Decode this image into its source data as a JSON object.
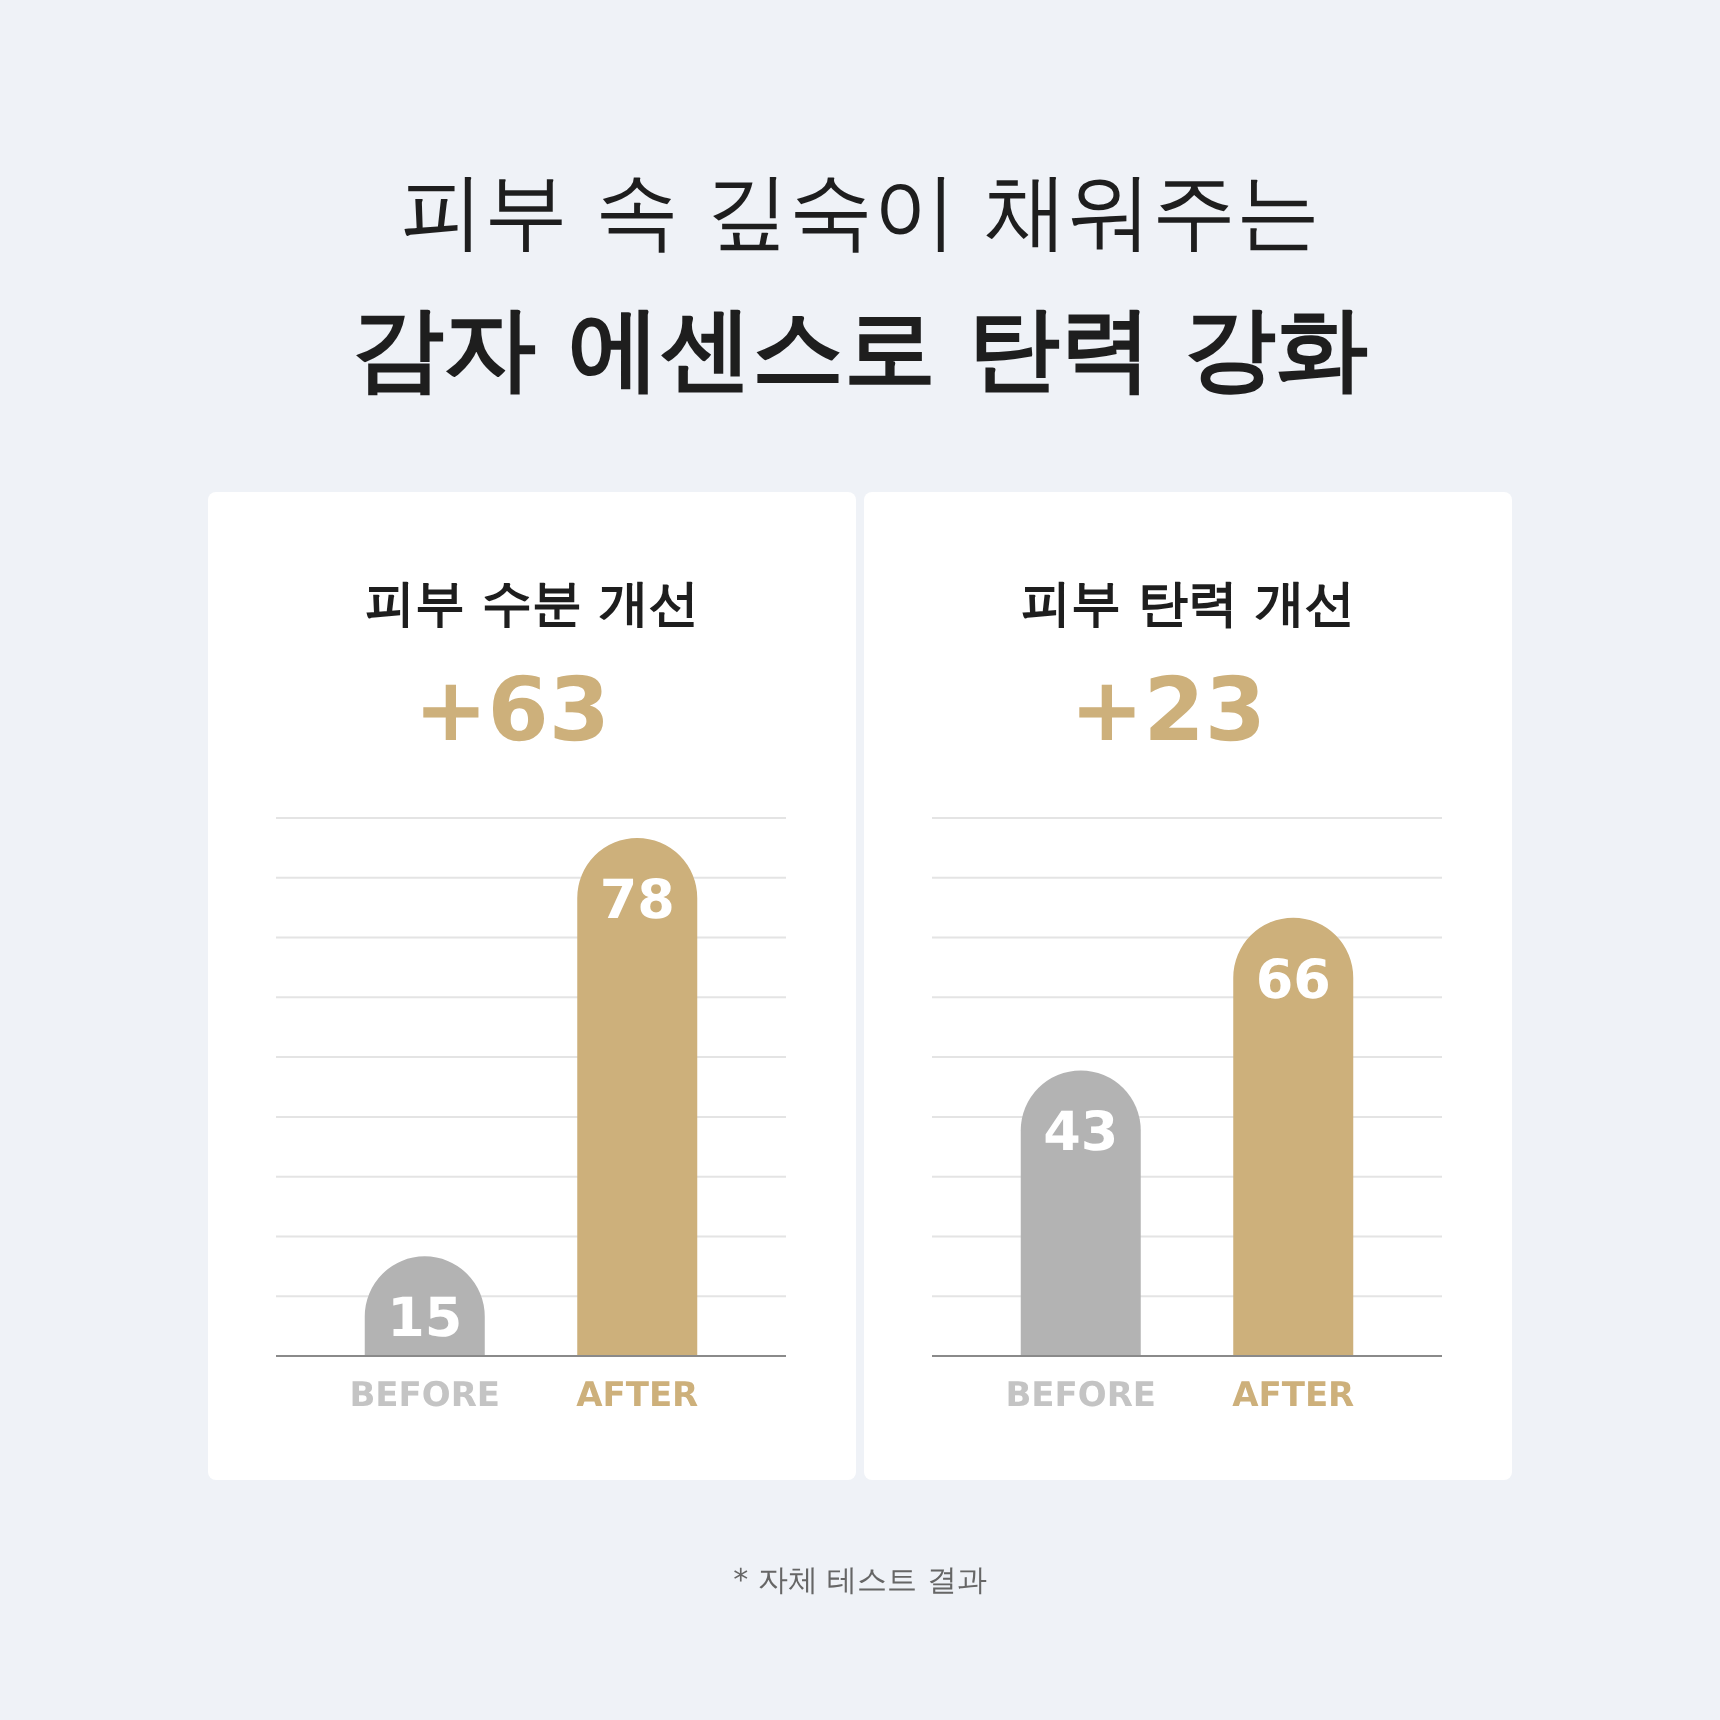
{
  "chart_data": [
    {
      "type": "other",
      "annotations": [
        "피부 속 깊숙이 채워주는",
        "감자 에센스로 탄력 강화"
      ]
    },
    {
      "type": "bar",
      "title": "피부 수분 개선",
      "subtitle": "+63",
      "categories": [
        "BEFORE",
        "AFTER"
      ],
      "values": [
        15,
        78
      ],
      "colors": [
        "#b3b3b3",
        "#cdb07b"
      ],
      "ylim": [
        0,
        81
      ],
      "yticks": [
        {
          "value": 9,
          "label": null
        },
        {
          "value": 18,
          "label": null
        },
        {
          "value": 27,
          "label": null
        },
        {
          "value": 36,
          "label": null
        },
        {
          "value": 45,
          "label": null
        },
        {
          "value": 54,
          "label": null
        },
        {
          "value": 63,
          "label": null
        },
        {
          "value": 72,
          "label": null
        },
        {
          "value": 81,
          "label": null
        }
      ],
      "grid": "y",
      "data_labels": true
    },
    {
      "type": "bar",
      "title": "피부 탄력 개선",
      "subtitle": "+23",
      "categories": [
        "BEFORE",
        "AFTER"
      ],
      "values": [
        43,
        66
      ],
      "colors": [
        "#b3b3b3",
        "#cdb07b"
      ],
      "ylim": [
        0,
        81
      ],
      "yticks": [
        {
          "value": 9,
          "label": null
        },
        {
          "value": 18,
          "label": null
        },
        {
          "value": 27,
          "label": null
        },
        {
          "value": 36,
          "label": null
        },
        {
          "value": 45,
          "label": null
        },
        {
          "value": 54,
          "label": null
        },
        {
          "value": 63,
          "label": null
        },
        {
          "value": 72,
          "label": null
        },
        {
          "value": 81,
          "label": null
        }
      ],
      "grid": "y",
      "data_labels": true
    },
    {
      "type": "other",
      "annotations": [
        "* 자체 테스트 결과"
      ]
    }
  ]
}
